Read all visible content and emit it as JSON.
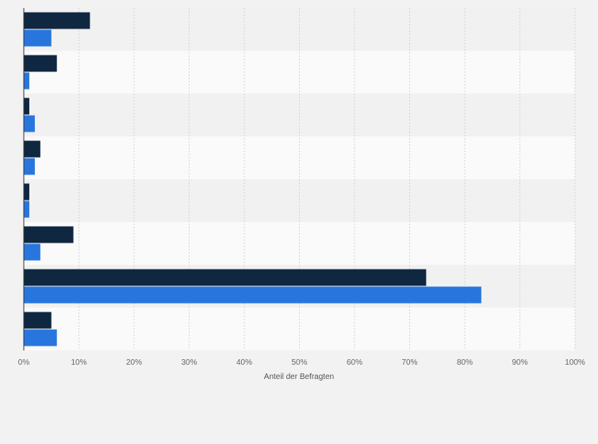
{
  "chart_data": {
    "type": "bar",
    "orientation": "horizontal",
    "categories": [
      "",
      "",
      "",
      "",
      "",
      "",
      "",
      ""
    ],
    "series": [
      {
        "values": [
          12,
          6,
          1,
          3,
          1,
          9,
          73,
          5
        ],
        "color": "#0f2741"
      },
      {
        "values": [
          5,
          1,
          2,
          2,
          1,
          3,
          83,
          6
        ],
        "color": "#2876dd"
      }
    ],
    "xlim": [
      0,
      100
    ],
    "x_ticks": [
      0,
      10,
      20,
      30,
      40,
      50,
      60,
      70,
      80,
      90,
      100
    ],
    "x_tick_labels": [
      "0%",
      "10%",
      "20%",
      "30%",
      "40%",
      "50%",
      "60%",
      "70%",
      "80%",
      "90%",
      "100%"
    ],
    "xlabel": "Anteil der Befragten",
    "grid": true,
    "legend": "none",
    "colors": {
      "band_dark": "#f1f1f1",
      "band_light": "#fafafa",
      "grid": "#d5d5d5",
      "axis": "#333333"
    }
  }
}
